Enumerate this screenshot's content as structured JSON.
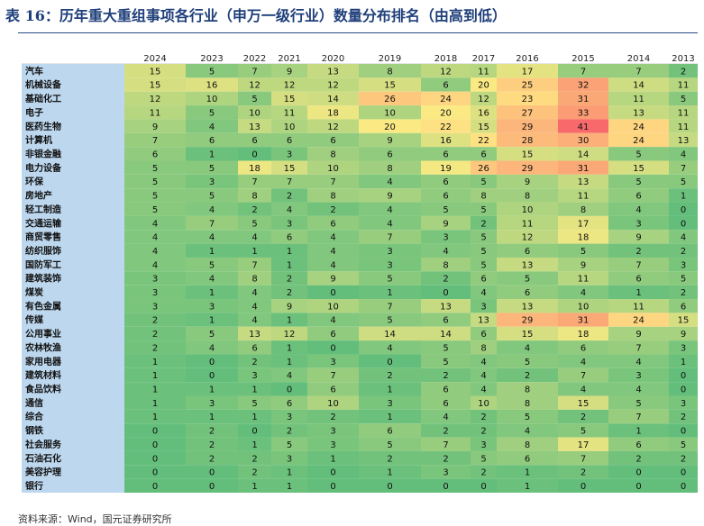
{
  "title": "表 16：历年重大重组事项各行业（申万一级行业）数量分布排名（由高到低）",
  "source": "资料来源：Wind，国元证券研究所",
  "colors": {
    "label_col": "#bdd7ee",
    "scale": [
      "#63be7b",
      "#ffeb84",
      "#f8696b"
    ],
    "rule": "#2a4a82",
    "title": "#1f3f7a"
  },
  "chart_data": {
    "type": "heatmap",
    "title": "历年重大重组事项各行业（申万一级行业）数量分布排名（由高到低）",
    "xlabel": "",
    "ylabel": "",
    "columns": [
      "2024",
      "2023",
      "2022",
      "2021",
      "2020",
      "2019",
      "2018",
      "2017",
      "2016",
      "2015",
      "2014",
      "2013"
    ],
    "color_range": [
      0,
      41
    ],
    "rows": [
      {
        "industry": "汽车",
        "values": [
          15,
          5,
          7,
          9,
          13,
          8,
          12,
          11,
          17,
          7,
          7,
          2
        ]
      },
      {
        "industry": "机械设备",
        "values": [
          15,
          16,
          12,
          12,
          12,
          15,
          6,
          20,
          25,
          32,
          14,
          11
        ]
      },
      {
        "industry": "基础化工",
        "values": [
          12,
          10,
          5,
          15,
          14,
          26,
          24,
          12,
          23,
          31,
          11,
          5
        ]
      },
      {
        "industry": "电子",
        "values": [
          11,
          5,
          10,
          11,
          18,
          10,
          20,
          16,
          27,
          33,
          13,
          11
        ]
      },
      {
        "industry": "医药生物",
        "values": [
          9,
          4,
          13,
          10,
          12,
          20,
          22,
          15,
          29,
          41,
          24,
          11
        ]
      },
      {
        "industry": "计算机",
        "values": [
          7,
          6,
          6,
          6,
          6,
          9,
          16,
          22,
          28,
          30,
          24,
          13
        ]
      },
      {
        "industry": "非银金融",
        "values": [
          6,
          1,
          0,
          3,
          8,
          6,
          6,
          6,
          15,
          14,
          5,
          4
        ]
      },
      {
        "industry": "电力设备",
        "values": [
          5,
          5,
          18,
          15,
          10,
          8,
          19,
          26,
          29,
          31,
          15,
          7
        ]
      },
      {
        "industry": "环保",
        "values": [
          5,
          3,
          7,
          7,
          7,
          4,
          6,
          5,
          9,
          13,
          5,
          5
        ]
      },
      {
        "industry": "房地产",
        "values": [
          5,
          5,
          8,
          2,
          8,
          9,
          6,
          8,
          8,
          11,
          6,
          1
        ]
      },
      {
        "industry": "轻工制造",
        "values": [
          5,
          4,
          2,
          4,
          2,
          4,
          5,
          5,
          10,
          8,
          4,
          0
        ]
      },
      {
        "industry": "交通运输",
        "values": [
          4,
          7,
          5,
          3,
          6,
          4,
          9,
          2,
          11,
          17,
          3,
          0
        ]
      },
      {
        "industry": "商贸零售",
        "values": [
          4,
          4,
          4,
          6,
          4,
          7,
          3,
          5,
          12,
          18,
          9,
          4
        ]
      },
      {
        "industry": "纺织服饰",
        "values": [
          4,
          1,
          1,
          1,
          4,
          3,
          4,
          5,
          6,
          5,
          2,
          2
        ]
      },
      {
        "industry": "国防军工",
        "values": [
          4,
          5,
          7,
          1,
          4,
          3,
          8,
          5,
          13,
          9,
          7,
          3
        ]
      },
      {
        "industry": "建筑装饰",
        "values": [
          3,
          4,
          8,
          2,
          9,
          5,
          2,
          6,
          5,
          11,
          6,
          5
        ]
      },
      {
        "industry": "煤炭",
        "values": [
          3,
          1,
          4,
          2,
          0,
          1,
          0,
          4,
          6,
          4,
          1,
          2
        ]
      },
      {
        "industry": "有色金属",
        "values": [
          3,
          3,
          4,
          9,
          10,
          7,
          13,
          3,
          13,
          10,
          11,
          6
        ]
      },
      {
        "industry": "传媒",
        "values": [
          2,
          1,
          4,
          1,
          4,
          5,
          6,
          13,
          29,
          31,
          24,
          15
        ]
      },
      {
        "industry": "公用事业",
        "values": [
          2,
          5,
          13,
          12,
          6,
          14,
          14,
          6,
          15,
          18,
          9,
          9
        ]
      },
      {
        "industry": "农林牧渔",
        "values": [
          2,
          4,
          6,
          1,
          0,
          4,
          5,
          8,
          4,
          6,
          7,
          3
        ]
      },
      {
        "industry": "家用电器",
        "values": [
          1,
          0,
          2,
          1,
          3,
          0,
          5,
          4,
          5,
          4,
          4,
          1
        ]
      },
      {
        "industry": "建筑材料",
        "values": [
          1,
          0,
          3,
          4,
          7,
          2,
          2,
          4,
          2,
          7,
          3,
          0
        ]
      },
      {
        "industry": "食品饮料",
        "values": [
          1,
          1,
          1,
          0,
          6,
          1,
          6,
          4,
          8,
          4,
          4,
          0
        ]
      },
      {
        "industry": "通信",
        "values": [
          1,
          3,
          5,
          6,
          10,
          3,
          6,
          10,
          8,
          15,
          5,
          3
        ]
      },
      {
        "industry": "综合",
        "values": [
          1,
          1,
          1,
          3,
          2,
          1,
          4,
          2,
          5,
          2,
          7,
          2
        ]
      },
      {
        "industry": "钢铁",
        "values": [
          0,
          2,
          0,
          2,
          3,
          6,
          2,
          2,
          4,
          5,
          1,
          0
        ]
      },
      {
        "industry": "社会服务",
        "values": [
          0,
          2,
          1,
          5,
          3,
          5,
          7,
          3,
          8,
          17,
          6,
          5
        ]
      },
      {
        "industry": "石油石化",
        "values": [
          0,
          2,
          2,
          3,
          1,
          2,
          2,
          5,
          6,
          7,
          2,
          2
        ]
      },
      {
        "industry": "美容护理",
        "values": [
          0,
          0,
          2,
          1,
          0,
          1,
          3,
          2,
          1,
          2,
          0,
          0
        ]
      },
      {
        "industry": "银行",
        "values": [
          0,
          0,
          1,
          1,
          0,
          0,
          0,
          0,
          1,
          0,
          0,
          0
        ]
      }
    ]
  }
}
